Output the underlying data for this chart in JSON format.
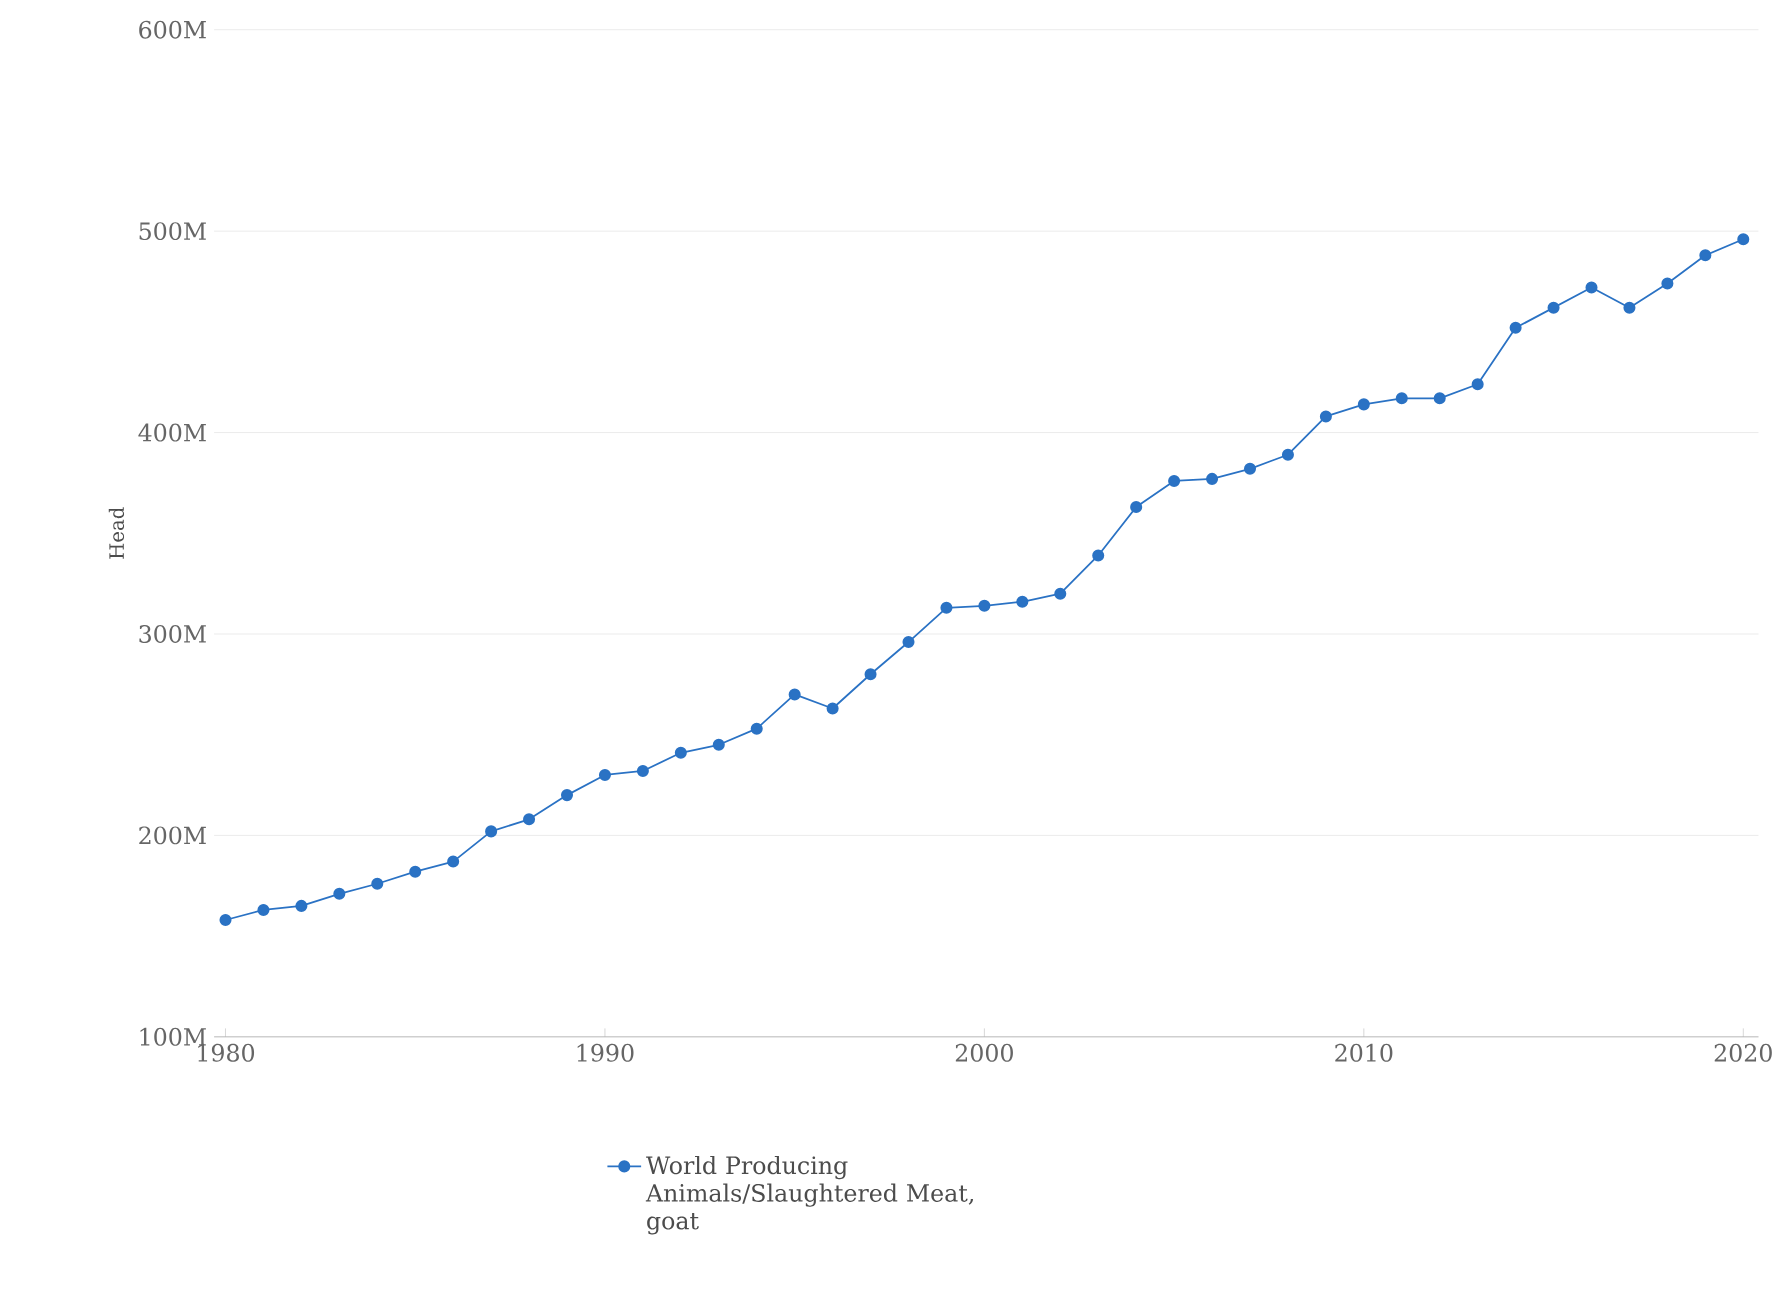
{
  "chart_data": {
    "type": "line",
    "ylabel": "Head",
    "x": [
      1980,
      1981,
      1982,
      1983,
      1984,
      1985,
      1986,
      1987,
      1988,
      1989,
      1990,
      1991,
      1992,
      1993,
      1994,
      1995,
      1996,
      1997,
      1998,
      1999,
      2000,
      2001,
      2002,
      2003,
      2004,
      2005,
      2006,
      2007,
      2008,
      2009,
      2010,
      2011,
      2012,
      2013,
      2014,
      2015,
      2016,
      2017,
      2018,
      2019,
      2020
    ],
    "series": [
      {
        "name": "World Producing Animals/Slaughtered Meat, goat",
        "color": "#2a72c4",
        "values": [
          158000000,
          163000000,
          165000000,
          171000000,
          176000000,
          182000000,
          187000000,
          202000000,
          208000000,
          220000000,
          230000000,
          232000000,
          241000000,
          245000000,
          253000000,
          270000000,
          263000000,
          280000000,
          296000000,
          313000000,
          314000000,
          316000000,
          320000000,
          339000000,
          363000000,
          376000000,
          377000000,
          382000000,
          389000000,
          408000000,
          414000000,
          417000000,
          417000000,
          424000000,
          452000000,
          462000000,
          472000000,
          462000000,
          474000000,
          488000000,
          496000000
        ]
      }
    ],
    "xlim": [
      1979.7,
      2020.4
    ],
    "xticks": [
      1980,
      1990,
      2000,
      2010,
      2020
    ],
    "ylim": [
      100000000,
      600000000
    ],
    "yticks": [
      {
        "value": 100000000,
        "label": "100M"
      },
      {
        "value": 200000000,
        "label": "200M"
      },
      {
        "value": 300000000,
        "label": "300M"
      },
      {
        "value": 400000000,
        "label": "400M"
      },
      {
        "value": 500000000,
        "label": "500M"
      },
      {
        "value": 600000000,
        "label": "600M"
      }
    ],
    "grid": "y",
    "legend": "bottom",
    "marker": "circle",
    "line_style": "solid"
  }
}
